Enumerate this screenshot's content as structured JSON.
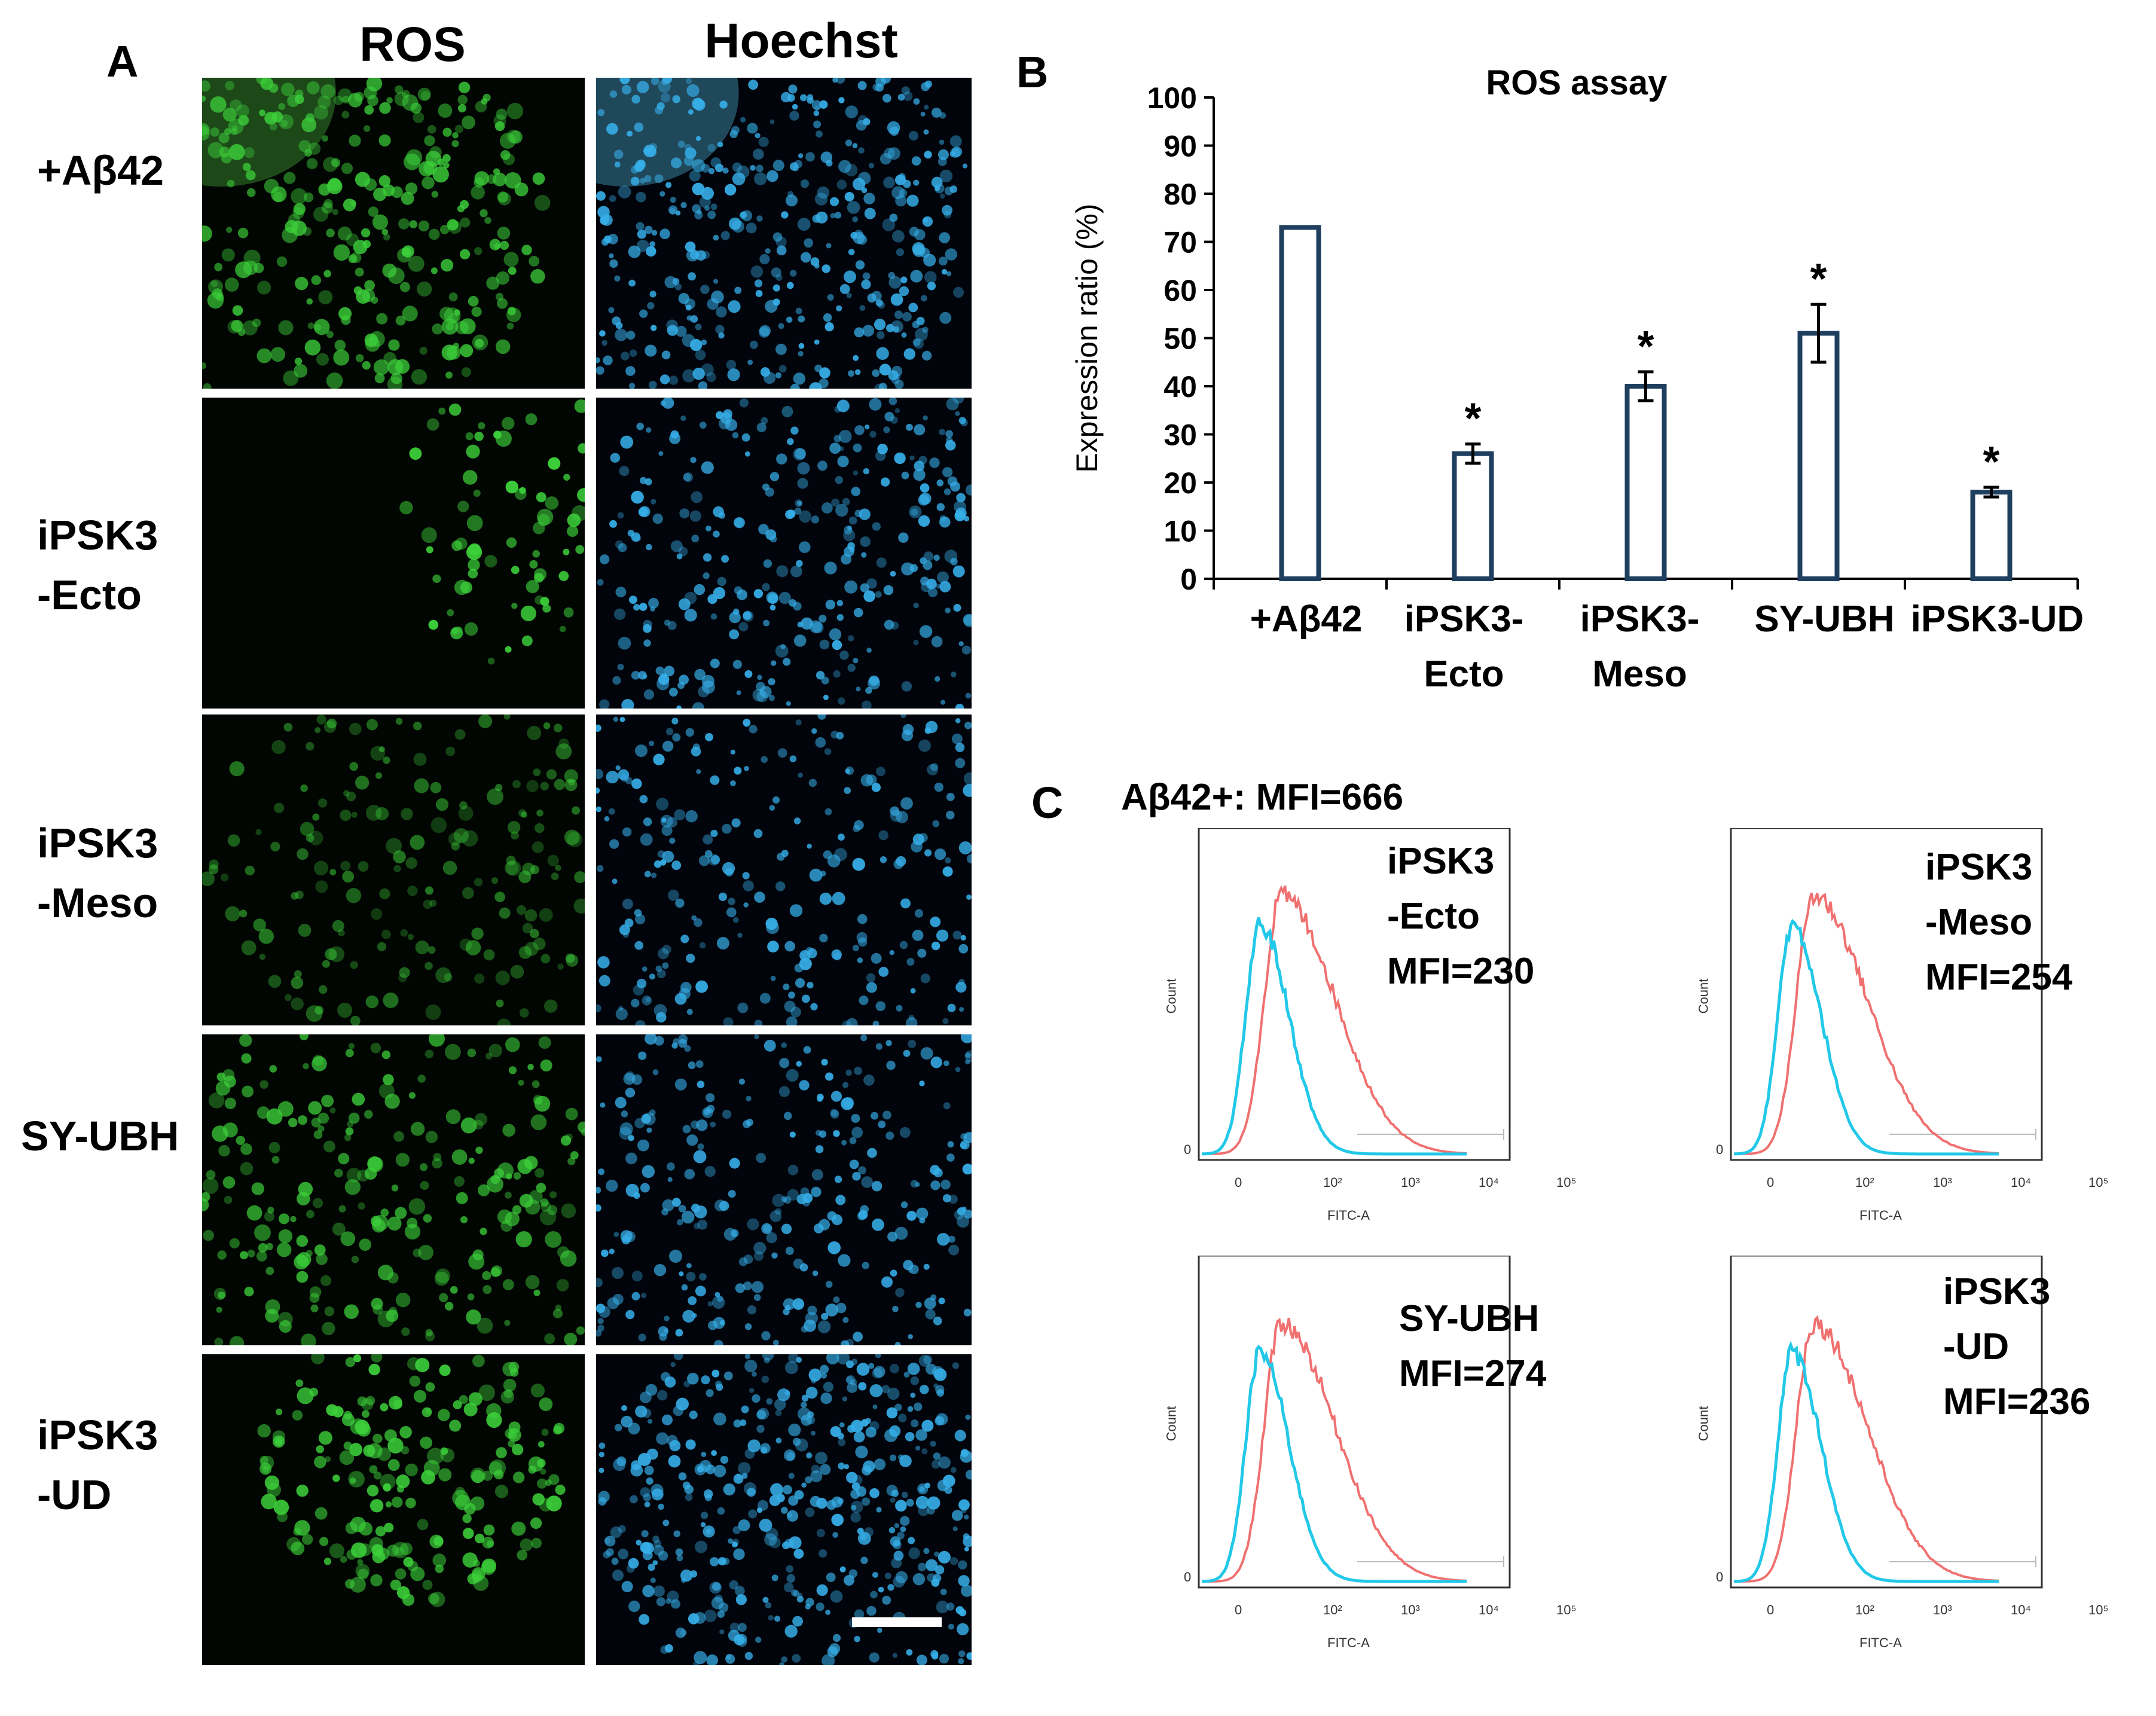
{
  "panel_a": {
    "letter": "A",
    "columns": [
      "ROS",
      "Hoechst"
    ],
    "rows": [
      {
        "label_lines": [
          "+Aβ42"
        ]
      },
      {
        "label_lines": [
          "iPSK3",
          "-Ecto"
        ]
      },
      {
        "label_lines": [
          "iPSK3",
          "-Meso"
        ]
      },
      {
        "label_lines": [
          "SY-UBH"
        ]
      },
      {
        "label_lines": [
          "iPSK3",
          "-UD"
        ]
      }
    ],
    "colors": {
      "ros": "#3ccf3a",
      "hoechst": "#36aee8"
    }
  },
  "panel_b": {
    "letter": "B"
  },
  "chart_data": [
    {
      "type": "bar",
      "title": "ROS assay",
      "ylabel": "Expression ratio (%)",
      "xlabel": "",
      "categories": [
        "+Aβ42",
        "iPSK3-Ecto",
        "iPSK3-Meso",
        "SY-UBH",
        "iPSK3-UD"
      ],
      "category_label_lines": [
        [
          "+Aβ42"
        ],
        [
          "iPSK3-",
          "Ecto"
        ],
        [
          "iPSK3-",
          "Meso"
        ],
        [
          "SY-UBH"
        ],
        [
          "iPSK3-UD"
        ]
      ],
      "values": [
        73,
        26,
        40,
        51,
        18
      ],
      "errors": [
        0,
        2,
        3,
        6,
        1
      ],
      "significance": [
        "",
        "*",
        "*",
        "*",
        "*"
      ],
      "ylim": [
        0,
        100
      ],
      "yticks": [
        0,
        10,
        20,
        30,
        40,
        50,
        60,
        70,
        80,
        90,
        100
      ],
      "bar_color": "#ffffff",
      "edge_color": "#1f3f5f",
      "grid": false
    }
  ],
  "panel_c": {
    "letter": "C",
    "control_label": "Aβ42+: MFI=666",
    "x_label": "FITC-A",
    "y_label": "Count",
    "x_ticks": [
      "0",
      "10²",
      "10³",
      "10⁴",
      "10⁵"
    ],
    "y_zero": "0",
    "colors": {
      "control": "#f07070",
      "treated": "#22c8e8"
    },
    "plots": [
      {
        "lines": [
          "iPSK3",
          "-Ecto",
          "MFI=230"
        ],
        "mfi": 230
      },
      {
        "lines": [
          "iPSK3",
          "-Meso",
          "MFI=254"
        ],
        "mfi": 254
      },
      {
        "lines": [
          "SY-UBH",
          "MFI=274"
        ],
        "mfi": 274
      },
      {
        "lines": [
          "iPSK3",
          "-UD",
          "MFI=236"
        ],
        "mfi": 236
      }
    ]
  }
}
